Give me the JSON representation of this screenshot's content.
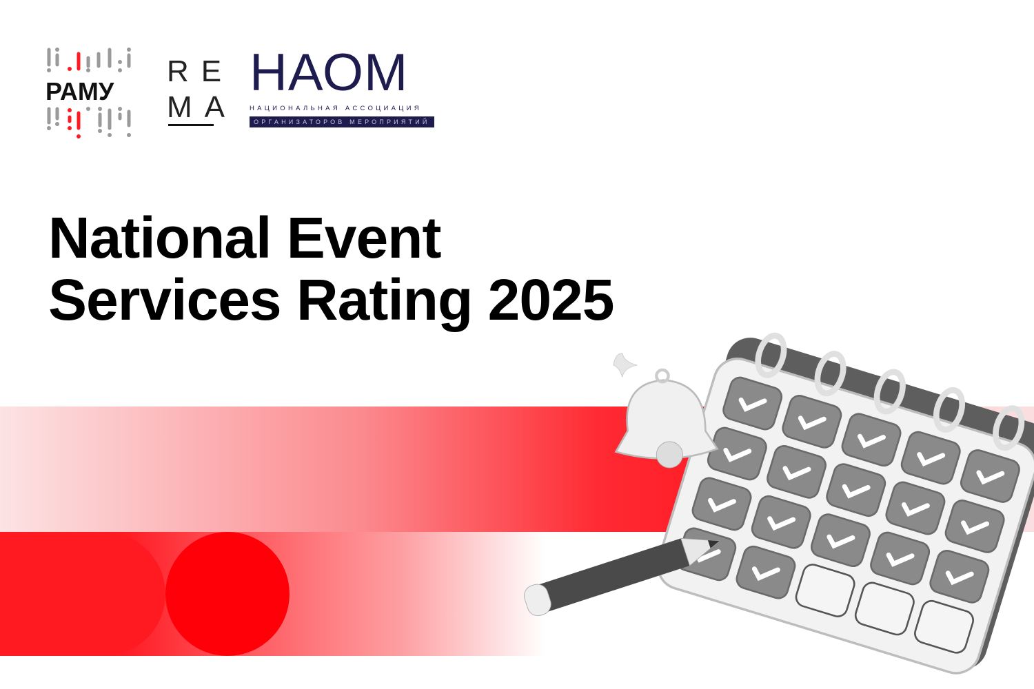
{
  "logos": {
    "ramu": {
      "text": "РАМУ",
      "accent": "#ff1a22"
    },
    "rema": {
      "line1": "RE",
      "line2": "MA"
    },
    "naom": {
      "title": "НАОМ",
      "subtitle": "НАЦИОНАЛЬНАЯ АССОЦИАЦИЯ",
      "box": "ОРГАНИЗАТОРОВ МЕРОПРИЯТИЙ",
      "color": "#1e1b4f"
    }
  },
  "title": {
    "line1": "National Event",
    "line2": "Services Rating 2025"
  },
  "colors": {
    "accent": "#ff1a22"
  }
}
